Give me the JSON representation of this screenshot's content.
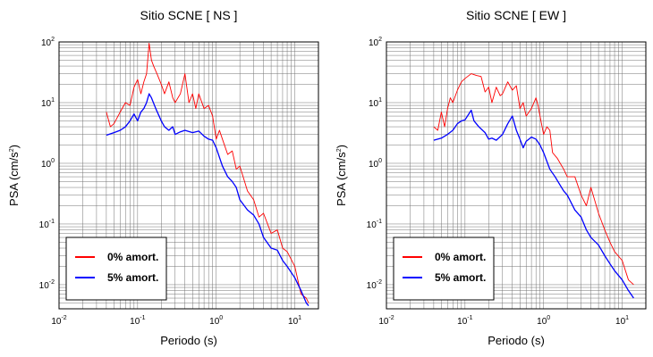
{
  "chart_data": [
    {
      "type": "line",
      "title": "Sitio SCNE [ NS ]",
      "xlabel": "Periodo (s)",
      "ylabel": "PSA (cm/s2)",
      "xscale": "log",
      "yscale": "log",
      "xlim": [
        0.01,
        20
      ],
      "ylim": [
        0.004,
        100
      ],
      "x_ticks": [
        {
          "base": "10",
          "exp": "-2"
        },
        {
          "base": "10",
          "exp": "-1"
        },
        {
          "base": "10",
          "exp": "0"
        },
        {
          "base": "10",
          "exp": "1"
        }
      ],
      "y_ticks": [
        {
          "base": "10",
          "exp": "-2"
        },
        {
          "base": "10",
          "exp": "-1"
        },
        {
          "base": "10",
          "exp": "0"
        },
        {
          "base": "10",
          "exp": "1"
        },
        {
          "base": "10",
          "exp": "2"
        }
      ],
      "grid": true,
      "legend_position": "bottom-left",
      "series": [
        {
          "name": "0% amort.",
          "color": "#ff0000",
          "points": [
            [
              0.04,
              7
            ],
            [
              0.045,
              4
            ],
            [
              0.05,
              4.5
            ],
            [
              0.06,
              7
            ],
            [
              0.07,
              10
            ],
            [
              0.08,
              9
            ],
            [
              0.09,
              18
            ],
            [
              0.1,
              24
            ],
            [
              0.11,
              14
            ],
            [
              0.12,
              22
            ],
            [
              0.13,
              30
            ],
            [
              0.14,
              95
            ],
            [
              0.15,
              50
            ],
            [
              0.16,
              40
            ],
            [
              0.18,
              28
            ],
            [
              0.2,
              20
            ],
            [
              0.22,
              14
            ],
            [
              0.25,
              22
            ],
            [
              0.28,
              12
            ],
            [
              0.3,
              10
            ],
            [
              0.35,
              14
            ],
            [
              0.4,
              30
            ],
            [
              0.45,
              10
            ],
            [
              0.5,
              14
            ],
            [
              0.55,
              8
            ],
            [
              0.6,
              14
            ],
            [
              0.7,
              8
            ],
            [
              0.8,
              9
            ],
            [
              0.9,
              6
            ],
            [
              1.0,
              2.5
            ],
            [
              1.1,
              3.5
            ],
            [
              1.2,
              2.5
            ],
            [
              1.4,
              1.4
            ],
            [
              1.6,
              1.6
            ],
            [
              1.8,
              0.8
            ],
            [
              2.0,
              0.9
            ],
            [
              2.5,
              0.35
            ],
            [
              3.0,
              0.25
            ],
            [
              3.5,
              0.13
            ],
            [
              4.0,
              0.15
            ],
            [
              5.0,
              0.07
            ],
            [
              6.0,
              0.08
            ],
            [
              7.0,
              0.04
            ],
            [
              8.0,
              0.035
            ],
            [
              10.0,
              0.02
            ],
            [
              12.0,
              0.007
            ],
            [
              14.0,
              0.006
            ],
            [
              15.0,
              0.005
            ]
          ]
        },
        {
          "name": "5% amort.",
          "color": "#0000ff",
          "points": [
            [
              0.04,
              2.9
            ],
            [
              0.05,
              3.2
            ],
            [
              0.06,
              3.5
            ],
            [
              0.07,
              4
            ],
            [
              0.08,
              5
            ],
            [
              0.09,
              6.5
            ],
            [
              0.1,
              5
            ],
            [
              0.11,
              7
            ],
            [
              0.12,
              8
            ],
            [
              0.13,
              10
            ],
            [
              0.14,
              14
            ],
            [
              0.15,
              12
            ],
            [
              0.17,
              8
            ],
            [
              0.2,
              5
            ],
            [
              0.22,
              4
            ],
            [
              0.25,
              3.5
            ],
            [
              0.28,
              4
            ],
            [
              0.3,
              3
            ],
            [
              0.35,
              3.3
            ],
            [
              0.4,
              3.5
            ],
            [
              0.5,
              3.2
            ],
            [
              0.6,
              3.4
            ],
            [
              0.7,
              2.8
            ],
            [
              0.8,
              2.5
            ],
            [
              0.9,
              2.4
            ],
            [
              1.0,
              1.8
            ],
            [
              1.2,
              0.9
            ],
            [
              1.4,
              0.6
            ],
            [
              1.6,
              0.5
            ],
            [
              1.8,
              0.4
            ],
            [
              2.0,
              0.25
            ],
            [
              2.5,
              0.17
            ],
            [
              3.0,
              0.14
            ],
            [
              3.5,
              0.1
            ],
            [
              4.0,
              0.06
            ],
            [
              5.0,
              0.04
            ],
            [
              6.0,
              0.037
            ],
            [
              7.0,
              0.025
            ],
            [
              8.0,
              0.02
            ],
            [
              10.0,
              0.013
            ],
            [
              12.0,
              0.008
            ],
            [
              14.0,
              0.005
            ],
            [
              15.0,
              0.0045
            ]
          ]
        }
      ]
    },
    {
      "type": "line",
      "title": "Sitio SCNE [ EW ]",
      "xlabel": "Periodo (s)",
      "ylabel": "PSA (cm/s2)",
      "xscale": "log",
      "yscale": "log",
      "xlim": [
        0.01,
        20
      ],
      "ylim": [
        0.004,
        100
      ],
      "x_ticks": [
        {
          "base": "10",
          "exp": "-2"
        },
        {
          "base": "10",
          "exp": "-1"
        },
        {
          "base": "10",
          "exp": "0"
        },
        {
          "base": "10",
          "exp": "1"
        }
      ],
      "y_ticks": [
        {
          "base": "10",
          "exp": "-2"
        },
        {
          "base": "10",
          "exp": "-1"
        },
        {
          "base": "10",
          "exp": "0"
        },
        {
          "base": "10",
          "exp": "1"
        },
        {
          "base": "10",
          "exp": "2"
        }
      ],
      "grid": true,
      "legend_position": "bottom-left",
      "series": [
        {
          "name": "0% amort.",
          "color": "#ff0000",
          "points": [
            [
              0.04,
              4
            ],
            [
              0.045,
              3.5
            ],
            [
              0.05,
              7
            ],
            [
              0.055,
              4
            ],
            [
              0.06,
              8
            ],
            [
              0.065,
              12
            ],
            [
              0.07,
              10
            ],
            [
              0.08,
              16
            ],
            [
              0.09,
              22
            ],
            [
              0.1,
              25
            ],
            [
              0.12,
              30
            ],
            [
              0.14,
              28
            ],
            [
              0.16,
              27
            ],
            [
              0.18,
              15
            ],
            [
              0.2,
              18
            ],
            [
              0.22,
              10
            ],
            [
              0.25,
              18
            ],
            [
              0.28,
              13
            ],
            [
              0.3,
              14
            ],
            [
              0.35,
              22
            ],
            [
              0.4,
              16
            ],
            [
              0.45,
              19
            ],
            [
              0.5,
              8
            ],
            [
              0.55,
              10
            ],
            [
              0.6,
              6
            ],
            [
              0.7,
              8
            ],
            [
              0.8,
              12
            ],
            [
              0.85,
              9
            ],
            [
              0.9,
              6
            ],
            [
              1.0,
              3
            ],
            [
              1.1,
              4
            ],
            [
              1.2,
              3.5
            ],
            [
              1.3,
              1.5
            ],
            [
              1.5,
              1.2
            ],
            [
              1.8,
              0.8
            ],
            [
              2.0,
              0.6
            ],
            [
              2.5,
              0.6
            ],
            [
              3.0,
              0.3
            ],
            [
              3.5,
              0.2
            ],
            [
              4.0,
              0.4
            ],
            [
              5.0,
              0.15
            ],
            [
              6.0,
              0.08
            ],
            [
              7.0,
              0.05
            ],
            [
              8.0,
              0.035
            ],
            [
              10.0,
              0.025
            ],
            [
              12.0,
              0.012
            ],
            [
              14.0,
              0.01
            ]
          ]
        },
        {
          "name": "5% amort.",
          "color": "#0000ff",
          "points": [
            [
              0.04,
              2.4
            ],
            [
              0.05,
              2.6
            ],
            [
              0.06,
              3
            ],
            [
              0.07,
              3.5
            ],
            [
              0.08,
              4.5
            ],
            [
              0.09,
              5
            ],
            [
              0.1,
              5.2
            ],
            [
              0.12,
              7.5
            ],
            [
              0.13,
              5
            ],
            [
              0.15,
              4
            ],
            [
              0.18,
              3.2
            ],
            [
              0.2,
              2.5
            ],
            [
              0.22,
              2.6
            ],
            [
              0.25,
              2.4
            ],
            [
              0.3,
              3
            ],
            [
              0.35,
              4.5
            ],
            [
              0.4,
              6
            ],
            [
              0.45,
              3.5
            ],
            [
              0.5,
              2.5
            ],
            [
              0.55,
              1.8
            ],
            [
              0.6,
              2.3
            ],
            [
              0.7,
              2.7
            ],
            [
              0.8,
              2.5
            ],
            [
              0.9,
              2
            ],
            [
              1.0,
              1.5
            ],
            [
              1.2,
              0.8
            ],
            [
              1.4,
              0.6
            ],
            [
              1.6,
              0.45
            ],
            [
              1.8,
              0.35
            ],
            [
              2.0,
              0.3
            ],
            [
              2.5,
              0.17
            ],
            [
              3.0,
              0.13
            ],
            [
              3.5,
              0.08
            ],
            [
              4.0,
              0.06
            ],
            [
              5.0,
              0.045
            ],
            [
              6.0,
              0.03
            ],
            [
              7.0,
              0.022
            ],
            [
              8.0,
              0.017
            ],
            [
              10.0,
              0.012
            ],
            [
              12.0,
              0.008
            ],
            [
              14.0,
              0.006
            ]
          ]
        }
      ]
    }
  ]
}
